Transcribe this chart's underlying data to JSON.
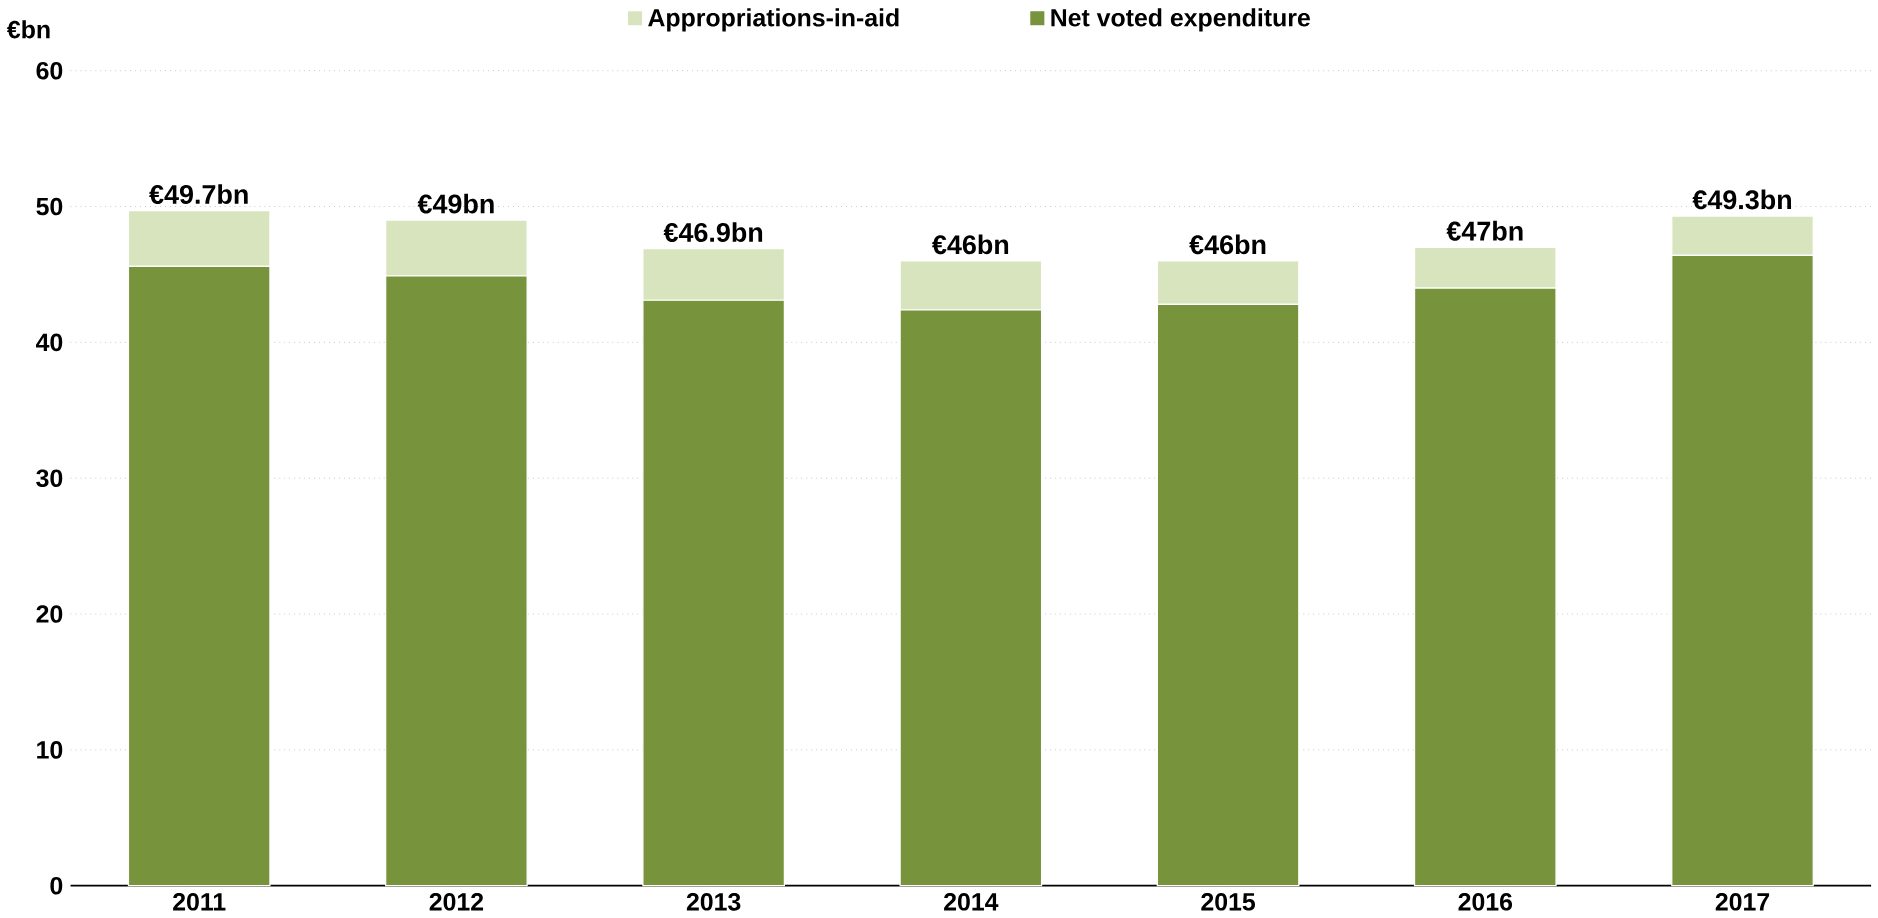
{
  "chart_data": {
    "type": "bar",
    "stacked": true,
    "ylabel": "€bn",
    "categories": [
      "2011",
      "2012",
      "2013",
      "2014",
      "2015",
      "2016",
      "2017"
    ],
    "series": [
      {
        "name": "Net voted expenditure",
        "color": "#77933c",
        "values": [
          45.6,
          44.9,
          43.1,
          42.4,
          42.8,
          44.0,
          46.4
        ]
      },
      {
        "name": "Appropriations-in-aid",
        "color": "#d7e4bd",
        "values": [
          4.1,
          4.1,
          3.8,
          3.6,
          3.2,
          3.0,
          2.9
        ]
      }
    ],
    "totals": [
      "€49.7bn",
      "€49bn",
      "€46.9bn",
      "€46bn",
      "€46bn",
      "€47bn",
      "€49.3bn"
    ],
    "ylim": [
      0,
      60
    ],
    "yticks": [
      0,
      10,
      20,
      30,
      40,
      50,
      60
    ],
    "grid": "y",
    "legend": "top"
  }
}
